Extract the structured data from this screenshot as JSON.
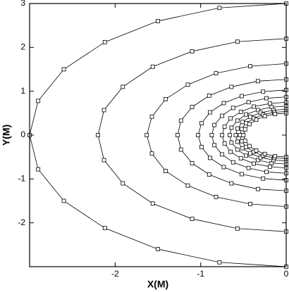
{
  "chart_data": {
    "type": "line",
    "xlabel": "X(M)",
    "ylabel": "Y(M)",
    "xlim": [
      -3,
      0
    ],
    "xticks": [
      -2,
      -1,
      0
    ],
    "ylim": [
      -3,
      3
    ],
    "yticks": [
      -2,
      -1,
      0,
      1,
      2,
      3
    ],
    "grid": false,
    "marker": "square",
    "series": [
      {
        "color": "#000000",
        "x": [
          0,
          -0.78,
          -1.5,
          -2.12,
          -2.6,
          -2.9,
          -3,
          -2.9,
          -2.6,
          -2.12,
          -1.5,
          -0.78,
          0
        ],
        "values": [
          3,
          2.9,
          2.6,
          2.12,
          1.5,
          0.78,
          0,
          -0.78,
          -1.5,
          -2.12,
          -2.6,
          -2.9,
          -3
        ]
      },
      {
        "color": "#000000",
        "x": [
          0,
          -0.57,
          -1.1,
          -1.56,
          -1.91,
          -2.13,
          -2.2,
          -2.13,
          -1.91,
          -1.56,
          -1.1,
          -0.57,
          0
        ],
        "values": [
          2.2,
          2.13,
          1.91,
          1.56,
          1.1,
          0.57,
          0,
          -0.57,
          -1.1,
          -1.56,
          -1.91,
          -2.13,
          -2.2
        ]
      },
      {
        "color": "#000000",
        "x": [
          0,
          -0.42,
          -0.82,
          -1.15,
          -1.41,
          -1.57,
          -1.63,
          -1.57,
          -1.41,
          -1.15,
          -0.82,
          -0.42,
          0
        ],
        "values": [
          1.63,
          1.57,
          1.41,
          1.15,
          0.82,
          0.42,
          0,
          -0.42,
          -0.82,
          -1.15,
          -1.41,
          -1.57,
          -1.63
        ]
      },
      {
        "color": "#000000",
        "x": [
          0,
          -0.33,
          -0.64,
          -0.9,
          -1.1,
          -1.23,
          -1.27,
          -1.23,
          -1.1,
          -0.9,
          -0.64,
          -0.33,
          0
        ],
        "values": [
          1.27,
          1.23,
          1.1,
          0.9,
          0.64,
          0.33,
          0,
          -0.33,
          -0.64,
          -0.9,
          -1.1,
          -1.23,
          -1.27
        ]
      },
      {
        "color": "#000000",
        "x": [
          0,
          -0.27,
          -0.52,
          -0.73,
          -0.89,
          -0.99,
          -1.03,
          -0.99,
          -0.89,
          -0.73,
          -0.52,
          -0.27,
          0
        ],
        "values": [
          1.03,
          0.99,
          0.89,
          0.73,
          0.52,
          0.27,
          0,
          -0.27,
          -0.52,
          -0.73,
          -0.89,
          -0.99,
          -1.03
        ]
      },
      {
        "color": "#000000",
        "x": [
          0,
          -0.23,
          -0.44,
          -0.62,
          -0.75,
          -0.84,
          -0.87,
          -0.84,
          -0.75,
          -0.62,
          -0.44,
          -0.23,
          0
        ],
        "values": [
          0.87,
          0.84,
          0.75,
          0.62,
          0.44,
          0.23,
          0,
          -0.23,
          -0.44,
          -0.62,
          -0.75,
          -0.84,
          -0.87
        ]
      },
      {
        "color": "#000000",
        "x": [
          0,
          -0.19,
          -0.38,
          -0.53,
          -0.65,
          -0.72,
          -0.75,
          -0.72,
          -0.65,
          -0.53,
          -0.38,
          -0.19,
          0
        ],
        "values": [
          0.75,
          0.72,
          0.65,
          0.53,
          0.38,
          0.19,
          0,
          -0.19,
          -0.38,
          -0.53,
          -0.65,
          -0.72,
          -0.75
        ]
      },
      {
        "color": "#000000",
        "x": [
          0,
          -0.17,
          -0.33,
          -0.47,
          -0.57,
          -0.64,
          -0.66,
          -0.64,
          -0.57,
          -0.47,
          -0.33,
          -0.17,
          0
        ],
        "values": [
          0.66,
          0.64,
          0.57,
          0.47,
          0.33,
          0.17,
          0,
          -0.17,
          -0.33,
          -0.47,
          -0.57,
          -0.64,
          -0.66
        ]
      },
      {
        "color": "#000000",
        "x": [
          0,
          -0.15,
          -0.3,
          -0.42,
          -0.51,
          -0.57,
          -0.59,
          -0.57,
          -0.51,
          -0.42,
          -0.3,
          -0.15,
          0
        ],
        "values": [
          0.59,
          0.57,
          0.51,
          0.42,
          0.3,
          0.15,
          0,
          -0.15,
          -0.3,
          -0.42,
          -0.51,
          -0.57,
          -0.59
        ]
      },
      {
        "color": "#000000",
        "x": [
          0,
          -0.14,
          -0.27,
          -0.38,
          -0.47,
          -0.52,
          -0.54,
          -0.52,
          -0.47,
          -0.38,
          -0.27,
          -0.14,
          0
        ],
        "values": [
          0.54,
          0.52,
          0.47,
          0.38,
          0.27,
          0.14,
          0,
          -0.14,
          -0.27,
          -0.38,
          -0.47,
          -0.52,
          -0.54
        ]
      },
      {
        "color": "#000000",
        "x": [
          0,
          -0.13,
          -0.25,
          -0.35,
          -0.43,
          -0.48,
          -0.5,
          -0.48,
          -0.43,
          -0.35,
          -0.25,
          -0.13,
          0
        ],
        "values": [
          0.5,
          0.48,
          0.43,
          0.35,
          0.25,
          0.13,
          0,
          -0.13,
          -0.25,
          -0.35,
          -0.43,
          -0.48,
          -0.5
        ]
      }
    ]
  }
}
